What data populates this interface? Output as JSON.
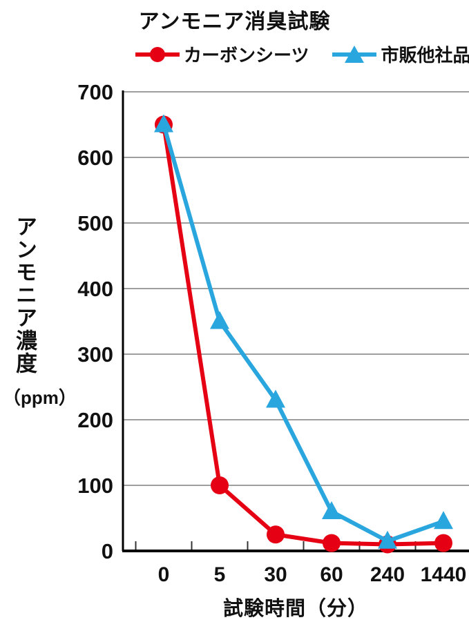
{
  "title": "アンモニア消臭試験",
  "legend": [
    {
      "label": "カーボンシーツ",
      "color": "#e50013",
      "marker": "circle"
    },
    {
      "label": "市販他社品",
      "color": "#2aa6de",
      "marker": "triangle"
    }
  ],
  "y_axis": {
    "label": "アンモニア濃度",
    "unit": "（ppm）"
  },
  "x_axis": {
    "label": "試験時間（分）"
  },
  "chart_data": {
    "type": "line",
    "title": "アンモニア消臭試験",
    "categories": [
      "0",
      "5",
      "30",
      "60",
      "240",
      "1440"
    ],
    "series": [
      {
        "name": "カーボンシーツ",
        "color": "#e50013",
        "marker": "circle",
        "values": [
          650,
          100,
          25,
          12,
          10,
          12
        ]
      },
      {
        "name": "市販他社品",
        "color": "#2aa6de",
        "marker": "triangle",
        "values": [
          650,
          350,
          230,
          60,
          15,
          45
        ]
      }
    ],
    "xlabel": "試験時間（分）",
    "ylabel": "アンモニア濃度（ppm）",
    "ylim": [
      0,
      700
    ],
    "ytick_step": 100,
    "grid": true,
    "grid_color": "#7f7f7f",
    "axis_color": "#000000",
    "background": "#ffffff",
    "legend_position": "top"
  }
}
